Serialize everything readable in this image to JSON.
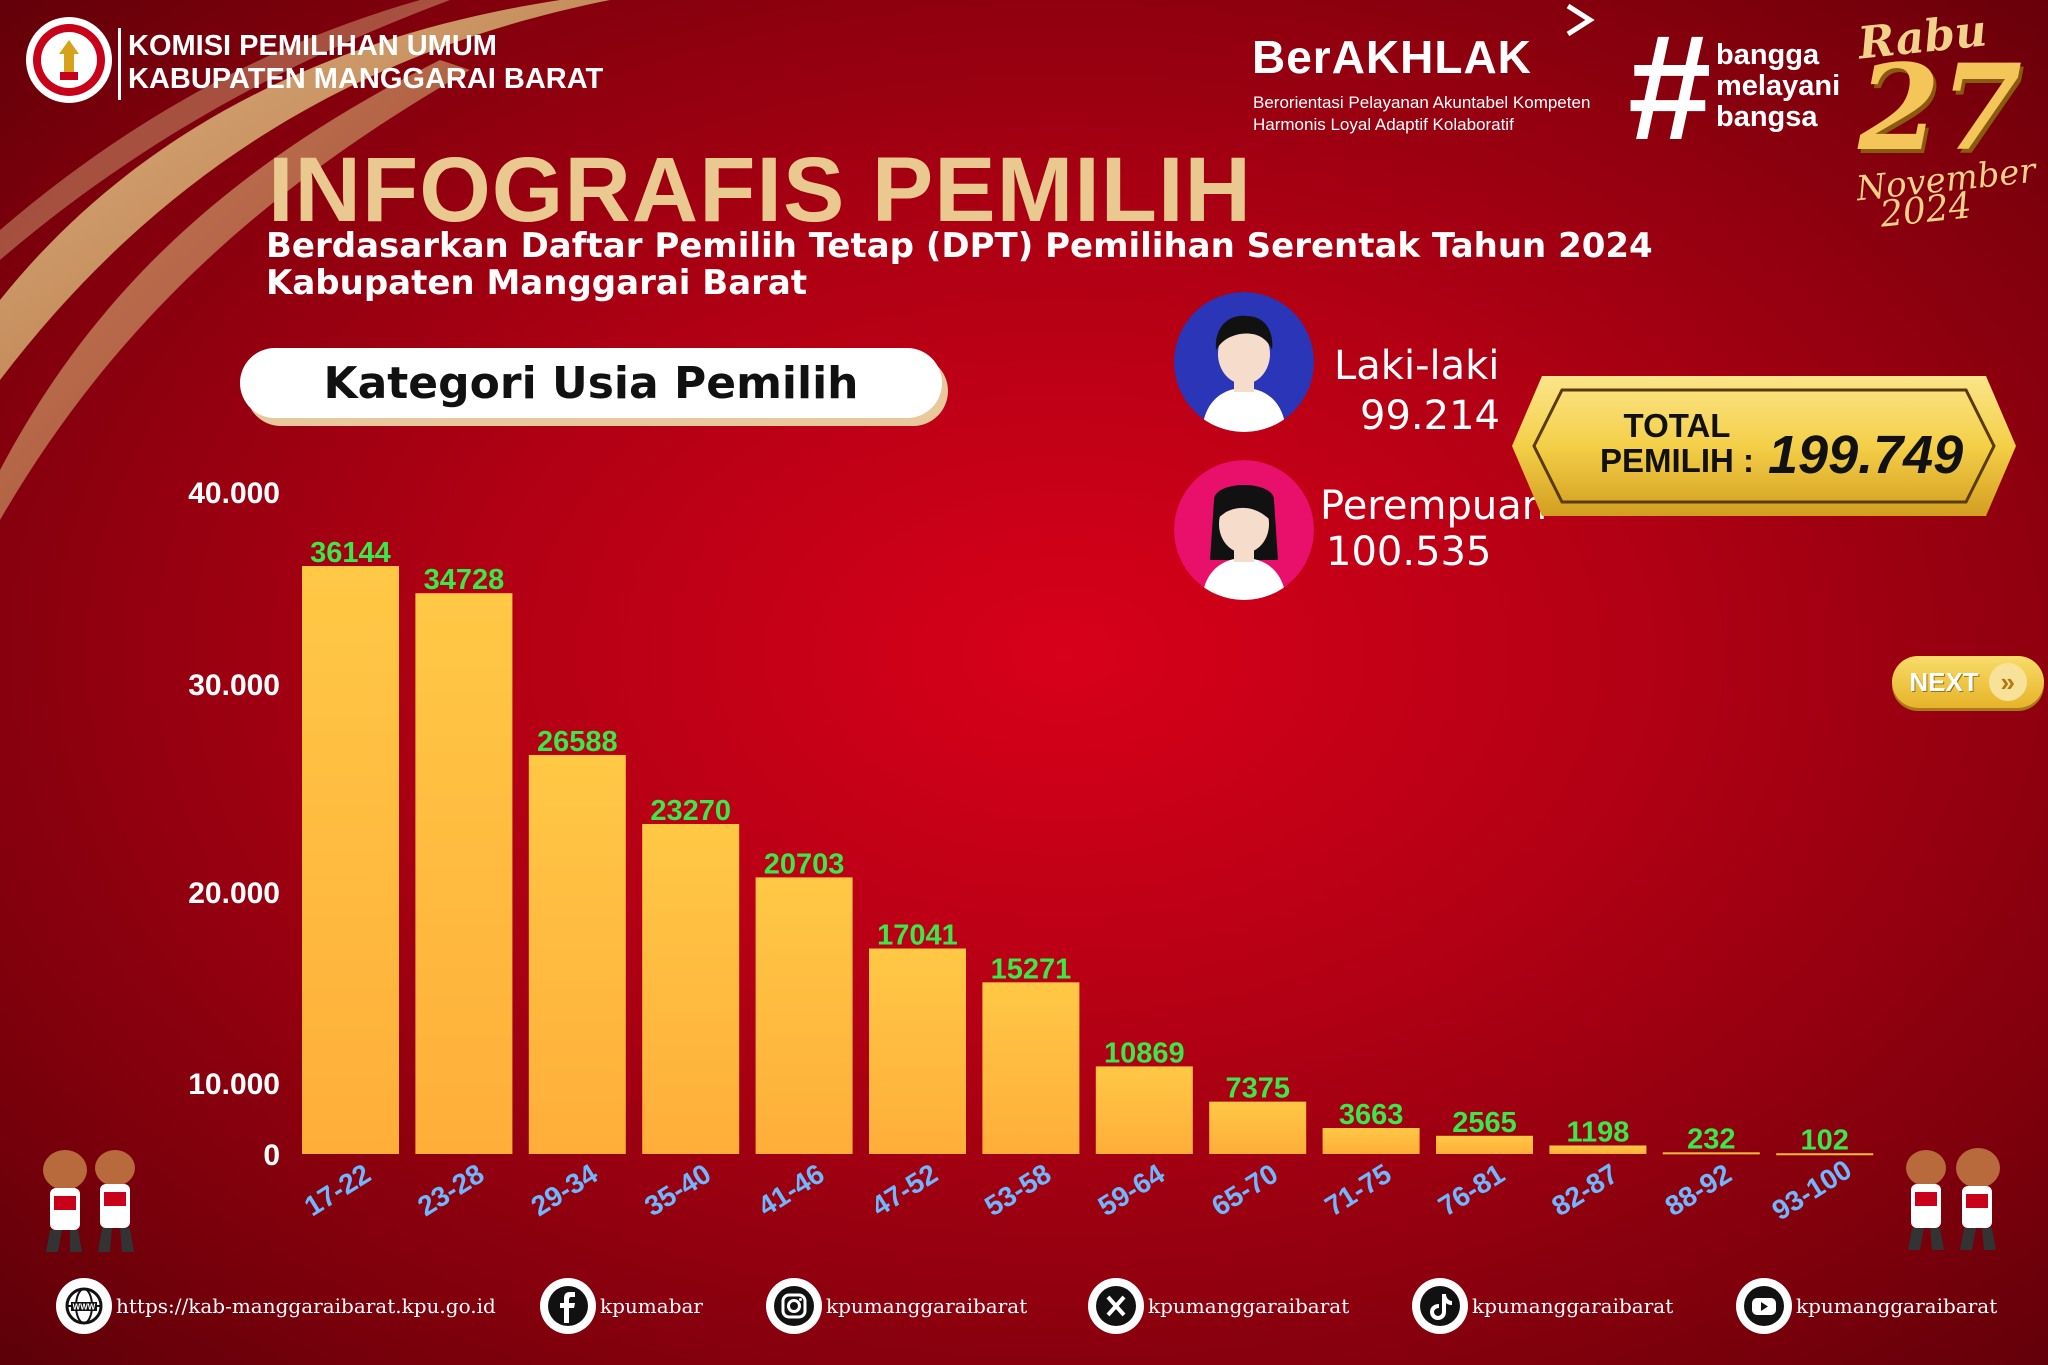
{
  "header": {
    "org_line1": "KOMISI PEMILIHAN UMUM",
    "org_line2": "KABUPATEN MANGGARAI BARAT",
    "brand": "BerAKHLAK",
    "brand_sub1": "Berorientasi Pelayanan Akuntabel Kompeten",
    "brand_sub2": "Harmonis Loyal Adaptif Kolaboratif",
    "hashtag": "#",
    "slogan1": "bangga",
    "slogan2": "melayani",
    "slogan3": "bangsa",
    "date_day": "Rabu",
    "date_num": "27",
    "date_month": "November",
    "date_year": "2024"
  },
  "title": "INFOGRAFIS PEMILIH",
  "subtitle1": "Berdasarkan Daftar Pemilih Tetap (DPT) Pemilihan Serentak Tahun 2024",
  "subtitle2": "Kabupaten Manggarai Barat",
  "category_label": "Kategori Usia Pemilih",
  "gender": {
    "male_label": "Laki-laki",
    "male_value": "99.214",
    "female_label": "Perempuan",
    "female_value": "100.535"
  },
  "total": {
    "line1": "TOTAL",
    "line2": "PEMILIH :",
    "value": "199.749"
  },
  "next_label": "NEXT",
  "colors": {
    "bar": "#ffb43a",
    "value_label": "#3be84a",
    "category_label": "#6fb8ff",
    "gold": "#e9c98f"
  },
  "chart_data": {
    "type": "bar",
    "categories": [
      "17-22",
      "23-28",
      "29-34",
      "35-40",
      "41-46",
      "47-52",
      "53-58",
      "59-64",
      "65-70",
      "71-75",
      "76-81",
      "82-87",
      "88-92",
      "93-100"
    ],
    "values": [
      36144,
      34728,
      26588,
      23270,
      20703,
      17041,
      15271,
      10869,
      7375,
      3663,
      2565,
      1198,
      232,
      102
    ],
    "value_labels": [
      "36144",
      "34728",
      "26588",
      "23270",
      "20703",
      "17041",
      "15271",
      "10869",
      "7375",
      "3663",
      "2565",
      "1198",
      "232",
      "102"
    ],
    "y_ticks": [
      {
        "value": 0,
        "label": "0"
      },
      {
        "value": 10000,
        "label": "10.000"
      },
      {
        "value": 20000,
        "label": "20.000"
      },
      {
        "value": 30000,
        "label": "30.000"
      },
      {
        "value": 40000,
        "label": "40.000"
      }
    ],
    "title": "",
    "xlabel": "",
    "ylabel": "",
    "ylim": [
      0,
      40000
    ],
    "grid": false
  },
  "footer": [
    {
      "icon": "globe-icon",
      "text": "https://kab-manggaraibarat.kpu.go.id"
    },
    {
      "icon": "facebook-icon",
      "text": "kpumabar"
    },
    {
      "icon": "instagram-icon",
      "text": "kpumanggaraibarat"
    },
    {
      "icon": "x-icon",
      "text": "kpumanggaraibarat"
    },
    {
      "icon": "tiktok-icon",
      "text": "kpumanggaraibarat"
    },
    {
      "icon": "youtube-icon",
      "text": "kpumanggaraibarat"
    }
  ]
}
